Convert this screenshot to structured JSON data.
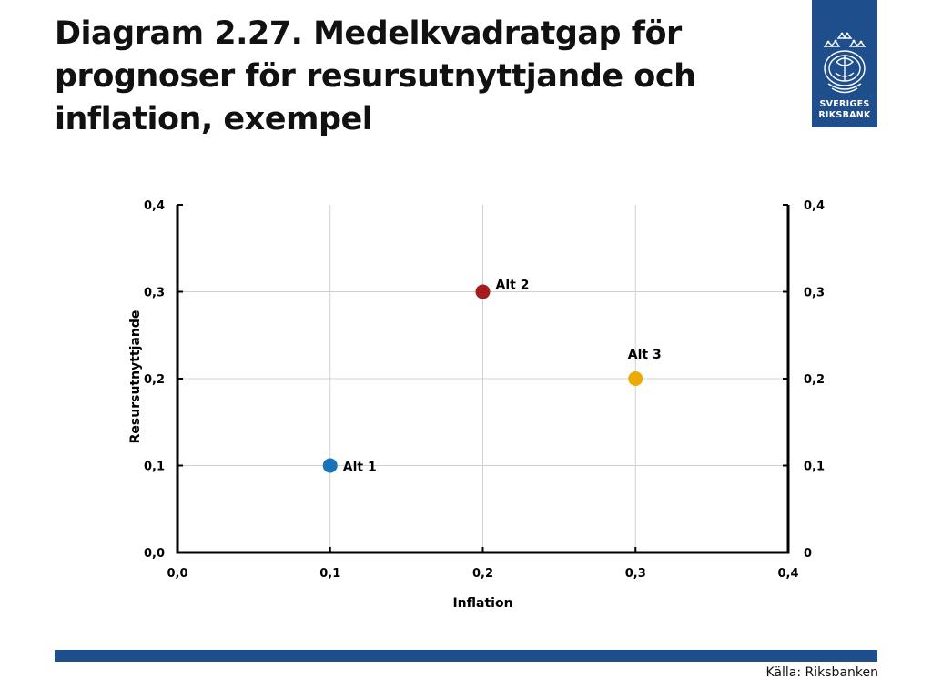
{
  "page": {
    "title": "Diagram 2.27. Medelkvadratgap för prognoser för resursutnyttjande och inflation, exempel",
    "logo": {
      "line1": "SVERIGES",
      "line2": "RIKSBANK"
    },
    "source": "Källa: Riksbanken",
    "accent_color": "#1f4e8c"
  },
  "chart_data": {
    "type": "scatter",
    "title": "",
    "xlabel": "Inflation",
    "ylabel": "Resursutnyttjande",
    "xlim": [
      0,
      0.4
    ],
    "ylim": [
      0,
      0.4
    ],
    "x_ticks": [
      "0,0",
      "0,1",
      "0,2",
      "0,3",
      "0,4"
    ],
    "y_ticks_left": [
      "0,0",
      "0,1",
      "0,2",
      "0,3",
      "0,4"
    ],
    "y_ticks_right": [
      "0",
      "0,1",
      "0,2",
      "0,3",
      "0,4"
    ],
    "grid": true,
    "points": [
      {
        "label": "Alt 1",
        "x": 0.1,
        "y": 0.1,
        "color": "#1a72b8"
      },
      {
        "label": "Alt 2",
        "x": 0.2,
        "y": 0.3,
        "color": "#a51c1c"
      },
      {
        "label": "Alt 3",
        "x": 0.3,
        "y": 0.2,
        "color": "#eeaa00"
      }
    ]
  }
}
